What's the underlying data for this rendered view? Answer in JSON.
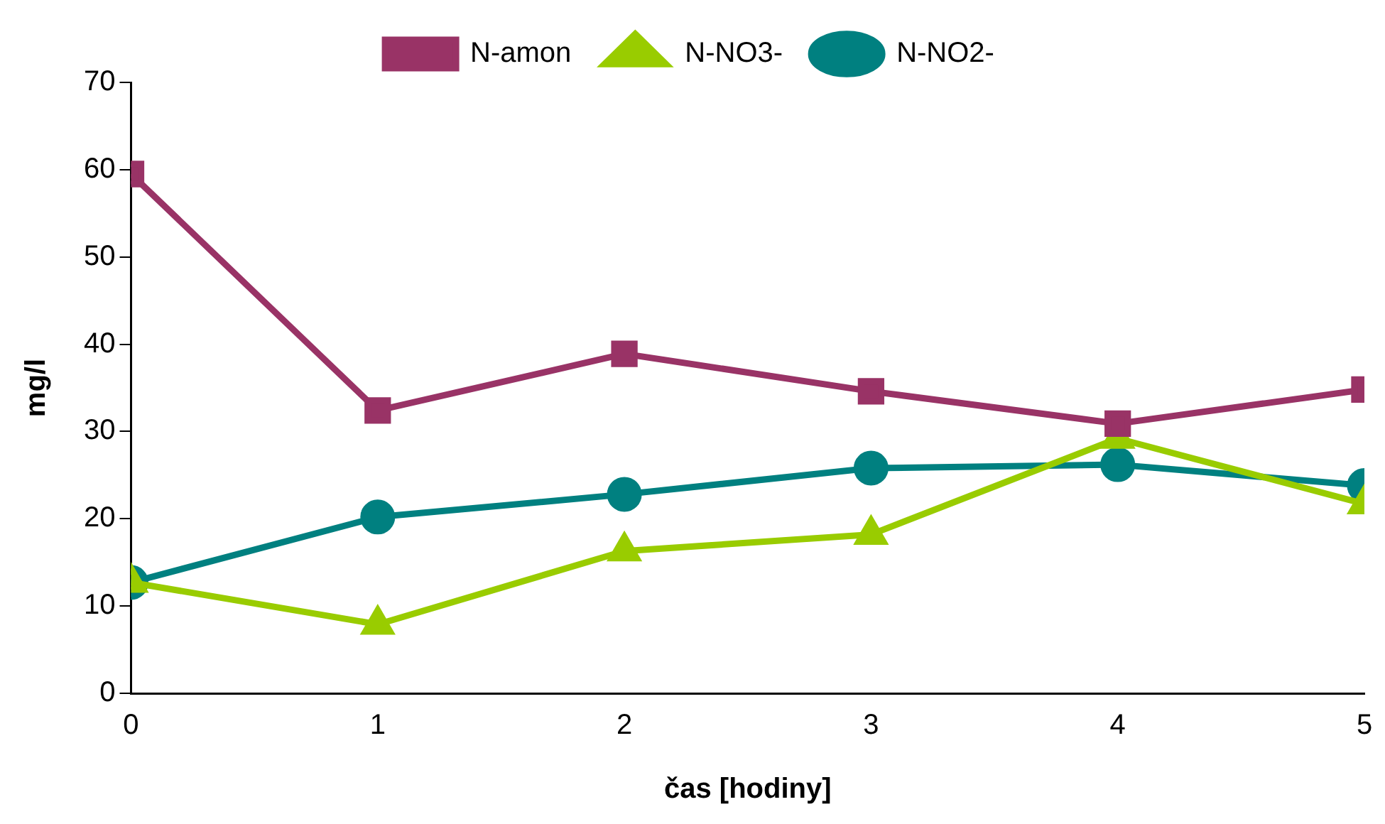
{
  "chart_data": {
    "type": "line",
    "xlabel": "čas [hodiny]",
    "ylabel": "mg/l",
    "x": [
      0,
      1,
      2,
      3,
      4,
      5
    ],
    "xlim": [
      0,
      5
    ],
    "xticks": [
      0,
      1,
      2,
      3,
      4,
      5
    ],
    "ylim": [
      0,
      70
    ],
    "yticks": [
      0,
      10,
      20,
      30,
      40,
      50,
      60,
      70
    ],
    "grid": false,
    "legend": "top",
    "line_style": "solid",
    "series": [
      {
        "name": "N-amon",
        "color": "#993366",
        "marker": "square",
        "values": [
          59.5,
          32.4,
          38.9,
          34.6,
          30.9,
          34.8
        ]
      },
      {
        "name": "N-NO3-",
        "color": "#99cc00",
        "marker": "triangle",
        "values": [
          12.7,
          7.9,
          16.3,
          18.2,
          29.2,
          21.7
        ]
      },
      {
        "name": "N-NO2-",
        "color": "#008080",
        "marker": "circle",
        "values": [
          12.7,
          20.2,
          22.8,
          25.8,
          26.2,
          23.8
        ]
      }
    ]
  }
}
